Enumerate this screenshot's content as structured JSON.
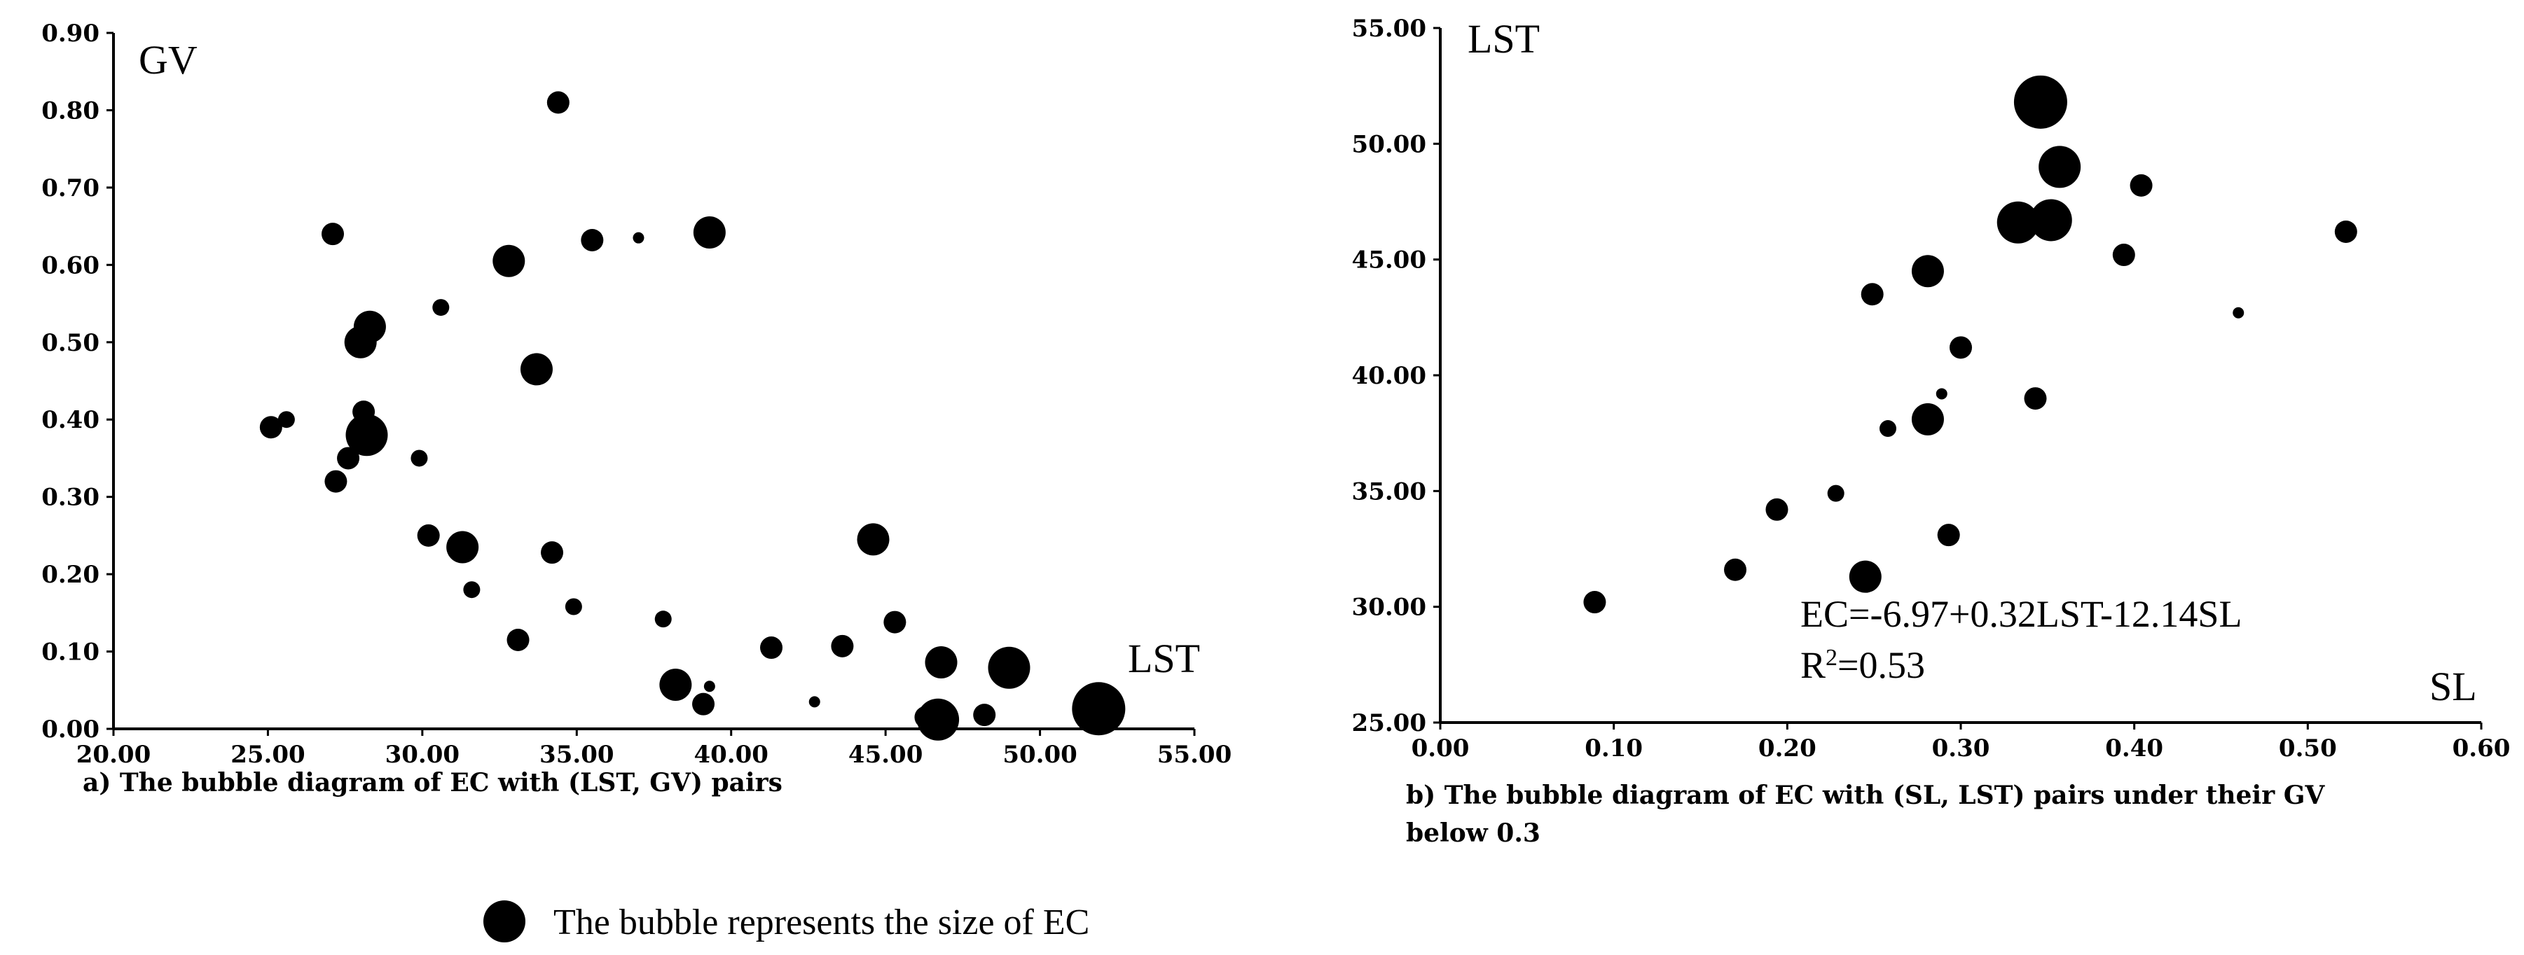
{
  "chart_data": [
    {
      "type": "scatter",
      "x_axis_label": "LST",
      "y_axis_label": "GV",
      "caption": "a) The bubble diagram of EC with (LST, GV) pairs",
      "xlim": [
        20,
        55
      ],
      "ylim": [
        0,
        0.9
      ],
      "x_ticks": [
        "20.00",
        "25.00",
        "30.00",
        "35.00",
        "40.00",
        "45.00",
        "50.00",
        "55.00"
      ],
      "y_ticks": [
        "0.00",
        "0.10",
        "0.20",
        "0.30",
        "0.40",
        "0.50",
        "0.60",
        "0.70",
        "0.80",
        "0.90"
      ],
      "grid": false,
      "points": [
        {
          "x": 25.1,
          "y": 0.39,
          "size": "small"
        },
        {
          "x": 25.6,
          "y": 0.4,
          "size": "xsmall"
        },
        {
          "x": 27.1,
          "y": 0.64,
          "size": "small"
        },
        {
          "x": 27.2,
          "y": 0.32,
          "size": "small"
        },
        {
          "x": 27.6,
          "y": 0.35,
          "size": "small"
        },
        {
          "x": 28.0,
          "y": 0.5,
          "size": "medium"
        },
        {
          "x": 28.1,
          "y": 0.41,
          "size": "small"
        },
        {
          "x": 28.2,
          "y": 0.38,
          "size": "large"
        },
        {
          "x": 28.3,
          "y": 0.52,
          "size": "medium"
        },
        {
          "x": 29.9,
          "y": 0.35,
          "size": "xsmall"
        },
        {
          "x": 30.2,
          "y": 0.25,
          "size": "small"
        },
        {
          "x": 30.6,
          "y": 0.545,
          "size": "xsmall"
        },
        {
          "x": 31.3,
          "y": 0.235,
          "size": "medium"
        },
        {
          "x": 31.6,
          "y": 0.18,
          "size": "xsmall"
        },
        {
          "x": 32.8,
          "y": 0.605,
          "size": "medium"
        },
        {
          "x": 33.1,
          "y": 0.115,
          "size": "small"
        },
        {
          "x": 33.7,
          "y": 0.465,
          "size": "medium"
        },
        {
          "x": 34.2,
          "y": 0.228,
          "size": "small"
        },
        {
          "x": 34.4,
          "y": 0.81,
          "size": "small"
        },
        {
          "x": 34.9,
          "y": 0.158,
          "size": "xsmall"
        },
        {
          "x": 35.5,
          "y": 0.632,
          "size": "small"
        },
        {
          "x": 37.0,
          "y": 0.635,
          "size": "tiny"
        },
        {
          "x": 37.8,
          "y": 0.142,
          "size": "xsmall"
        },
        {
          "x": 38.2,
          "y": 0.057,
          "size": "medium"
        },
        {
          "x": 39.1,
          "y": 0.032,
          "size": "small"
        },
        {
          "x": 39.3,
          "y": 0.055,
          "size": "tiny"
        },
        {
          "x": 39.3,
          "y": 0.642,
          "size": "medium"
        },
        {
          "x": 41.3,
          "y": 0.105,
          "size": "small"
        },
        {
          "x": 42.7,
          "y": 0.035,
          "size": "tiny"
        },
        {
          "x": 43.6,
          "y": 0.107,
          "size": "small"
        },
        {
          "x": 44.6,
          "y": 0.245,
          "size": "medium"
        },
        {
          "x": 45.3,
          "y": 0.138,
          "size": "small"
        },
        {
          "x": 46.3,
          "y": 0.015,
          "size": "small"
        },
        {
          "x": 46.7,
          "y": 0.012,
          "size": "large"
        },
        {
          "x": 46.8,
          "y": 0.086,
          "size": "medium"
        },
        {
          "x": 48.2,
          "y": 0.018,
          "size": "small"
        },
        {
          "x": 49.0,
          "y": 0.079,
          "size": "large"
        },
        {
          "x": 51.9,
          "y": 0.026,
          "size": "xlarge"
        }
      ]
    },
    {
      "type": "scatter",
      "x_axis_label": "SL",
      "y_axis_label": "LST",
      "caption": "b) The bubble diagram of EC with (SL, LST) pairs under their GV below 0.3",
      "caption_lines": [
        "b) The bubble diagram of EC with (SL, LST) pairs under their GV",
        "below 0.3"
      ],
      "xlim": [
        0,
        0.6
      ],
      "ylim": [
        25,
        55
      ],
      "x_ticks": [
        "0.00",
        "0.10",
        "0.20",
        "0.30",
        "0.40",
        "0.50",
        "0.60"
      ],
      "y_ticks": [
        "25.00",
        "30.00",
        "35.00",
        "40.00",
        "45.00",
        "50.00",
        "55.00"
      ],
      "grid": false,
      "annotation_lines": [
        "EC=-6.97+0.32LST-12.14SL",
        "R2=0.53"
      ],
      "points": [
        {
          "x": 0.089,
          "y": 30.2,
          "size": "small"
        },
        {
          "x": 0.17,
          "y": 31.6,
          "size": "small"
        },
        {
          "x": 0.194,
          "y": 34.2,
          "size": "small"
        },
        {
          "x": 0.228,
          "y": 34.9,
          "size": "xsmall"
        },
        {
          "x": 0.245,
          "y": 31.3,
          "size": "medium"
        },
        {
          "x": 0.249,
          "y": 43.5,
          "size": "small"
        },
        {
          "x": 0.258,
          "y": 37.7,
          "size": "xsmall"
        },
        {
          "x": 0.281,
          "y": 38.1,
          "size": "medium"
        },
        {
          "x": 0.281,
          "y": 44.5,
          "size": "medium"
        },
        {
          "x": 0.289,
          "y": 39.2,
          "size": "tiny"
        },
        {
          "x": 0.293,
          "y": 33.1,
          "size": "small"
        },
        {
          "x": 0.3,
          "y": 41.2,
          "size": "small"
        },
        {
          "x": 0.333,
          "y": 46.6,
          "size": "large"
        },
        {
          "x": 0.343,
          "y": 39.0,
          "size": "small"
        },
        {
          "x": 0.346,
          "y": 51.8,
          "size": "xlarge"
        },
        {
          "x": 0.352,
          "y": 46.7,
          "size": "large"
        },
        {
          "x": 0.357,
          "y": 49.0,
          "size": "large"
        },
        {
          "x": 0.394,
          "y": 45.2,
          "size": "small"
        },
        {
          "x": 0.404,
          "y": 48.2,
          "size": "small"
        },
        {
          "x": 0.46,
          "y": 42.7,
          "size": "tiny"
        },
        {
          "x": 0.522,
          "y": 46.2,
          "size": "small"
        }
      ]
    }
  ],
  "legend": {
    "text": "The bubble represents the size of EC"
  }
}
